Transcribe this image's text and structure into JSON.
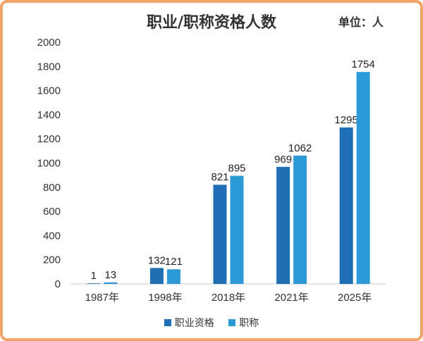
{
  "chart_data": {
    "type": "bar",
    "title": "职业/职称资格人数",
    "unit_label": "单位：人",
    "categories": [
      "1987年",
      "1998年",
      "2018年",
      "2021年",
      "2025年"
    ],
    "series": [
      {
        "name": "职业资格",
        "color": "#1f6fb5",
        "values": [
          1,
          132,
          821,
          969,
          1295
        ]
      },
      {
        "name": "职称",
        "color": "#2b9ad6",
        "values": [
          13,
          121,
          895,
          1062,
          1754
        ]
      }
    ],
    "ylim": [
      0,
      2000
    ],
    "yticks": [
      0,
      200,
      400,
      600,
      800,
      1000,
      1200,
      1400,
      1600,
      1800,
      2000
    ],
    "grid": false,
    "legend_position": "bottom"
  }
}
